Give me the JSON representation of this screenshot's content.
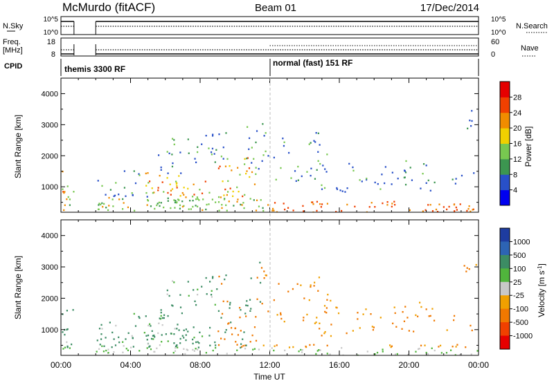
{
  "header": {
    "station": "McMurdo (fitACF)",
    "beam": "Beam 01",
    "date": "17/Dec/2014"
  },
  "scan_info": {
    "left_labels": {
      "nsky": "N.Sky",
      "freq": "Freq.",
      "freq_unit": "[MHz]",
      "cpid": "CPID"
    },
    "right_labels": {
      "nsearch": "N.Search",
      "nave": "Nave"
    },
    "noise_ticks_left": [
      "10^5",
      "10^0"
    ],
    "noise_ticks_right": [
      "10^5",
      "10^0"
    ],
    "freq_ticks": [
      "18",
      "8"
    ],
    "nave_ticks": [
      "60",
      "0"
    ],
    "cpid_segments": [
      {
        "label": "themis 3300 RF",
        "start_hour": 0
      },
      {
        "label": "normal (fast) 151 RF",
        "start_hour": 12
      }
    ]
  },
  "chart_data": [
    {
      "type": "heatmap",
      "title": "Power",
      "xlabel": "",
      "ylabel": "Slant Range [km]",
      "ylim": [
        180,
        4500
      ],
      "xlim": [
        0,
        24
      ],
      "yticks": [
        "1000",
        "2000",
        "3000",
        "4000"
      ],
      "colorbar": {
        "label": "Power [dB]",
        "ticks": [
          "4",
          "8",
          "12",
          "16",
          "20",
          "24",
          "28"
        ],
        "range": [
          0,
          32
        ],
        "colors": [
          "#0000f0",
          "#2850c8",
          "#3c9650",
          "#78c850",
          "#f0d000",
          "#f08c00",
          "#f04000",
          "#e60000"
        ]
      }
    },
    {
      "type": "heatmap",
      "title": "Velocity",
      "xlabel": "Time UT",
      "ylabel": "Slant Range [km]",
      "ylim": [
        180,
        4500
      ],
      "xlim": [
        0,
        24
      ],
      "yticks": [
        "1000",
        "2000",
        "3000",
        "4000"
      ],
      "xticks": [
        "00:00",
        "04:00",
        "08:00",
        "12:00",
        "16:00",
        "20:00",
        "00:00"
      ],
      "colorbar": {
        "label": "Velocity [m s^-1]",
        "ticks": [
          "1000",
          "500",
          "100",
          "25",
          "-25",
          "-100",
          "-500",
          "-1000"
        ],
        "colors": [
          "#1e3ca0",
          "#2d64b4",
          "#3c8c64",
          "#50b43c",
          "#c8c8c8",
          "#f0a000",
          "#f07800",
          "#f04000",
          "#e60000"
        ]
      }
    }
  ]
}
